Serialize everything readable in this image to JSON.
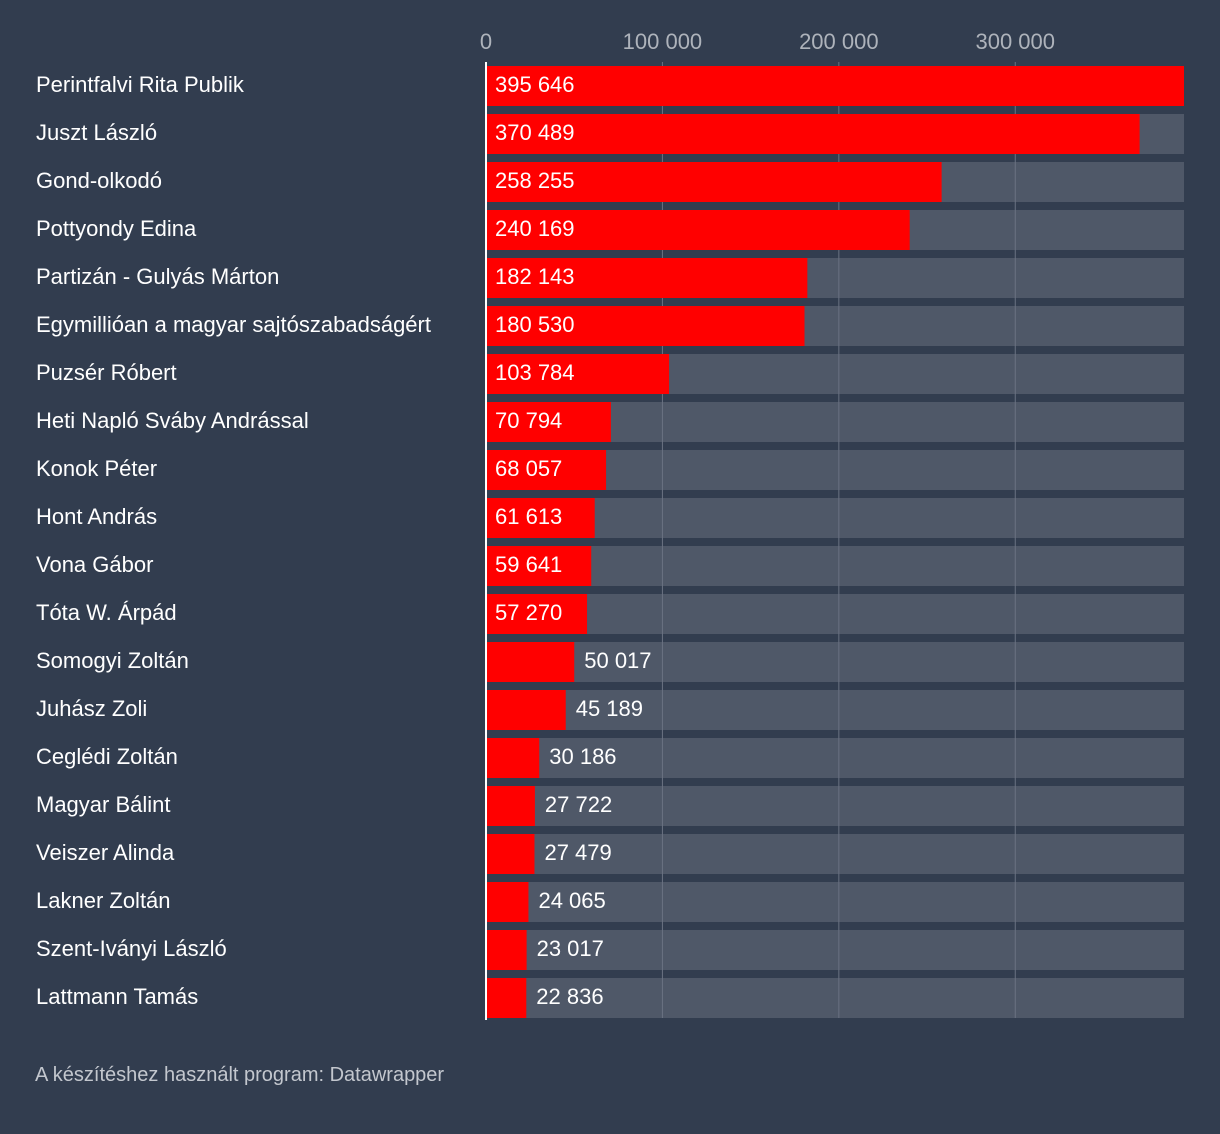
{
  "chart_data": {
    "type": "bar",
    "orientation": "horizontal",
    "title": "",
    "xlabel": "",
    "ylabel": "",
    "xlim": [
      0,
      395646
    ],
    "ticks": [
      {
        "value": 0,
        "label": "0"
      },
      {
        "value": 100000,
        "label": "100 000"
      },
      {
        "value": 200000,
        "label": "200 000"
      },
      {
        "value": 300000,
        "label": "300 000"
      }
    ],
    "colors": {
      "bar": "#ff0000",
      "track": "#4f5868",
      "background": "#323d4f",
      "text": "#ffffff",
      "tick_text": "#aeb3bb",
      "grid": "#6a7282",
      "baseline": "#ffffff"
    },
    "categories": [
      "Perintfalvi Rita Publik",
      "Juszt László",
      "Gond-olkodó",
      "Pottyondy Edina",
      "Partizán - Gulyás Márton",
      "Egymillióan a magyar sajtószabadságért",
      "Puzsér Róbert",
      "Heti Napló Sváby Andrással",
      "Konok Péter",
      "Hont András",
      "Vona Gábor",
      "Tóta W. Árpád",
      "Somogyi Zoltán",
      "Juhász Zoli",
      "Ceglédi Zoltán",
      "Magyar Bálint",
      "Veiszer Alinda",
      "Lakner Zoltán",
      "Szent-Iványi László",
      "Lattmann Tamás"
    ],
    "values": [
      395646,
      370489,
      258255,
      240169,
      182143,
      180530,
      103784,
      70794,
      68057,
      61613,
      59641,
      57270,
      50017,
      45189,
      30186,
      27722,
      27479,
      24065,
      23017,
      22836
    ],
    "value_labels": [
      "395 646",
      "370 489",
      "258 255",
      "240 169",
      "182 143",
      "180 530",
      "103 784",
      "70 794",
      "68 057",
      "61 613",
      "59 641",
      "57 270",
      "50 017",
      "45 189",
      "30 186",
      "27 722",
      "27 479",
      "24 065",
      "23 017",
      "22 836"
    ]
  },
  "footer": {
    "credit": "A készítéshez használt program: Datawrapper"
  }
}
